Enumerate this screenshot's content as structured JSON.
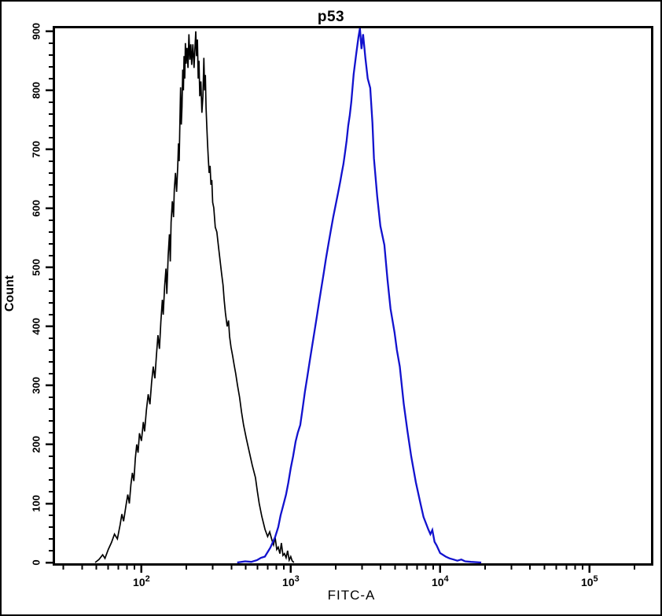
{
  "colors": {
    "background": "#ffffff",
    "axis": "#000000",
    "black_curve": "#000000",
    "blue_curve": "#1212ce"
  },
  "chart_data": {
    "type": "line",
    "subtype": "flow-cytometry-overlay-histogram",
    "title": "p53",
    "xlabel": "FITC-A",
    "ylabel": "Count",
    "legend": "none",
    "grid": "off",
    "x_axis": {
      "scale": "log",
      "min": 26.4,
      "max": 258000,
      "major_ticks": [
        {
          "value": 100,
          "base": "10",
          "exp": "2"
        },
        {
          "value": 1000,
          "base": "10",
          "exp": "3"
        },
        {
          "value": 10000,
          "base": "10",
          "exp": "4"
        },
        {
          "value": 100000,
          "base": "10",
          "exp": "5"
        }
      ],
      "minor_ticks": "log decades 2-9"
    },
    "y_axis": {
      "scale": "linear",
      "min": 0,
      "max": 905,
      "major_step": 100,
      "minor_step": 20,
      "tick_labels": [
        "0",
        "100",
        "200",
        "300",
        "400",
        "500",
        "600",
        "700",
        "800",
        "900"
      ]
    },
    "series": [
      {
        "name": "black",
        "color": "#000000",
        "peak_value": 231,
        "peak_count": 900,
        "points": [
          [
            49,
            0
          ],
          [
            52,
            5
          ],
          [
            55,
            13
          ],
          [
            57,
            7
          ],
          [
            60,
            22
          ],
          [
            63,
            34
          ],
          [
            66,
            48
          ],
          [
            69,
            40
          ],
          [
            72,
            64
          ],
          [
            74,
            82
          ],
          [
            76,
            70
          ],
          [
            79,
            98
          ],
          [
            81,
            115
          ],
          [
            83,
            100
          ],
          [
            85,
            132
          ],
          [
            87,
            152
          ],
          [
            89,
            138
          ],
          [
            91,
            176
          ],
          [
            93,
            200
          ],
          [
            95,
            186
          ],
          [
            97,
            219
          ],
          [
            100,
            206
          ],
          [
            103,
            238
          ],
          [
            105,
            222
          ],
          [
            108,
            258
          ],
          [
            111,
            285
          ],
          [
            114,
            268
          ],
          [
            117,
            305
          ],
          [
            120,
            332
          ],
          [
            123,
            312
          ],
          [
            126,
            350
          ],
          [
            129,
            385
          ],
          [
            132,
            362
          ],
          [
            135,
            408
          ],
          [
            138,
            445
          ],
          [
            140,
            420
          ],
          [
            143,
            468
          ],
          [
            146,
            498
          ],
          [
            148,
            455
          ],
          [
            151,
            520
          ],
          [
            154,
            556
          ],
          [
            156,
            510
          ],
          [
            158,
            576
          ],
          [
            161,
            612
          ],
          [
            164,
            585
          ],
          [
            166,
            632
          ],
          [
            169,
            660
          ],
          [
            172,
            628
          ],
          [
            175,
            672
          ],
          [
            177,
            710
          ],
          [
            179,
            680
          ],
          [
            181,
            745
          ],
          [
            183,
            805
          ],
          [
            185,
            742
          ],
          [
            187,
            772
          ],
          [
            189,
            835
          ],
          [
            191,
            800
          ],
          [
            193,
            858
          ],
          [
            195,
            820
          ],
          [
            197,
            880
          ],
          [
            199,
            845
          ],
          [
            202,
            872
          ],
          [
            205,
            838
          ],
          [
            208,
            895
          ],
          [
            211,
            852
          ],
          [
            214,
            878
          ],
          [
            217,
            843
          ],
          [
            221,
            878
          ],
          [
            225,
            838
          ],
          [
            228,
            870
          ],
          [
            231,
            900
          ],
          [
            234,
            858
          ],
          [
            237,
            886
          ],
          [
            240,
            820
          ],
          [
            243,
            850
          ],
          [
            246,
            790
          ],
          [
            250,
            815
          ],
          [
            254,
            762
          ],
          [
            258,
            790
          ],
          [
            262,
            855
          ],
          [
            265,
            800
          ],
          [
            268,
            826
          ],
          [
            271,
            770
          ],
          [
            274,
            740
          ],
          [
            277,
            712
          ],
          [
            280,
            688
          ],
          [
            284,
            660
          ],
          [
            288,
            672
          ],
          [
            292,
            640
          ],
          [
            296,
            648
          ],
          [
            300,
            610
          ],
          [
            305,
            601
          ],
          [
            312,
            568
          ],
          [
            320,
            560
          ],
          [
            328,
            535
          ],
          [
            336,
            512
          ],
          [
            344,
            490
          ],
          [
            352,
            470
          ],
          [
            358,
            445
          ],
          [
            365,
            423
          ],
          [
            375,
            400
          ],
          [
            383,
            410
          ],
          [
            389,
            383
          ],
          [
            398,
            365
          ],
          [
            408,
            350
          ],
          [
            418,
            334
          ],
          [
            428,
            320
          ],
          [
            440,
            300
          ],
          [
            454,
            280
          ],
          [
            468,
            255
          ],
          [
            483,
            233
          ],
          [
            504,
            210
          ],
          [
            526,
            189
          ],
          [
            552,
            165
          ],
          [
            580,
            144
          ],
          [
            598,
            120
          ],
          [
            615,
            100
          ],
          [
            640,
            78
          ],
          [
            672,
            56
          ],
          [
            700,
            44
          ],
          [
            722,
            52
          ],
          [
            748,
            38
          ],
          [
            766,
            30
          ],
          [
            785,
            43
          ],
          [
            805,
            22
          ],
          [
            824,
            26
          ],
          [
            845,
            15
          ],
          [
            865,
            33
          ],
          [
            886,
            12
          ],
          [
            907,
            15
          ],
          [
            930,
            8
          ],
          [
            952,
            20
          ],
          [
            975,
            4
          ],
          [
            999,
            10
          ],
          [
            1020,
            3
          ],
          [
            1049,
            0
          ]
        ]
      },
      {
        "name": "blue",
        "color": "#1212ce",
        "peak_value": 2905,
        "peak_count": 905,
        "points": [
          [
            438,
            0
          ],
          [
            495,
            2
          ],
          [
            544,
            1
          ],
          [
            594,
            4
          ],
          [
            631,
            8
          ],
          [
            671,
            10
          ],
          [
            729,
            25
          ],
          [
            785,
            43
          ],
          [
            824,
            60
          ],
          [
            855,
            80
          ],
          [
            886,
            95
          ],
          [
            929,
            115
          ],
          [
            963,
            135
          ],
          [
            999,
            160
          ],
          [
            1036,
            180
          ],
          [
            1077,
            205
          ],
          [
            1114,
            220
          ],
          [
            1157,
            233
          ],
          [
            1199,
            260
          ],
          [
            1244,
            290
          ],
          [
            1290,
            315
          ],
          [
            1337,
            340
          ],
          [
            1387,
            365
          ],
          [
            1437,
            390
          ],
          [
            1490,
            415
          ],
          [
            1545,
            440
          ],
          [
            1601,
            465
          ],
          [
            1660,
            490
          ],
          [
            1721,
            515
          ],
          [
            1787,
            540
          ],
          [
            1851,
            562
          ],
          [
            1924,
            585
          ],
          [
            1993,
            605
          ],
          [
            2068,
            625
          ],
          [
            2143,
            645
          ],
          [
            2195,
            660
          ],
          [
            2250,
            675
          ],
          [
            2307,
            694
          ],
          [
            2365,
            715
          ],
          [
            2424,
            740
          ],
          [
            2482,
            758
          ],
          [
            2541,
            780
          ],
          [
            2636,
            827
          ],
          [
            2735,
            860
          ],
          [
            2838,
            890
          ],
          [
            2905,
            905
          ],
          [
            2976,
            870
          ],
          [
            3047,
            895
          ],
          [
            3155,
            855
          ],
          [
            3272,
            820
          ],
          [
            3402,
            804
          ],
          [
            3520,
            745
          ],
          [
            3604,
            685
          ],
          [
            3790,
            620
          ],
          [
            3981,
            570
          ],
          [
            4235,
            538
          ],
          [
            4440,
            480
          ],
          [
            4655,
            430
          ],
          [
            4950,
            390
          ],
          [
            5130,
            360
          ],
          [
            5370,
            332
          ],
          [
            5700,
            269
          ],
          [
            6040,
            223
          ],
          [
            6400,
            180
          ],
          [
            6870,
            136
          ],
          [
            7380,
            100
          ],
          [
            7740,
            77
          ],
          [
            8330,
            56
          ],
          [
            8600,
            48
          ],
          [
            8870,
            55
          ],
          [
            9170,
            35
          ],
          [
            9470,
            29
          ],
          [
            10000,
            16
          ],
          [
            10900,
            10
          ],
          [
            11540,
            7
          ],
          [
            12290,
            5
          ],
          [
            13040,
            3
          ],
          [
            13870,
            5
          ],
          [
            14700,
            2
          ],
          [
            16100,
            1
          ],
          [
            18840,
            0
          ]
        ]
      }
    ]
  }
}
